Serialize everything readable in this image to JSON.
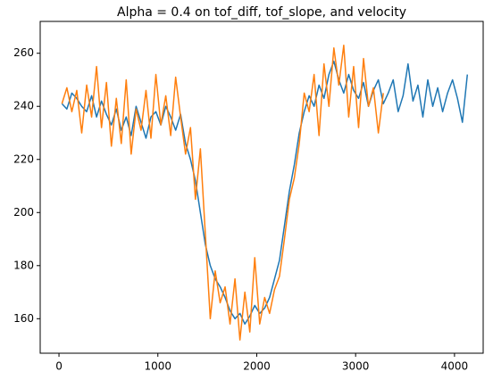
{
  "chart_data": {
    "type": "line",
    "title": "Alpha = 0.4 on tof_diff, tof_slope, and velocity",
    "series": [
      {
        "color": "#1f77b4",
        "x": [
          30,
          80,
          130,
          180,
          230,
          280,
          330,
          380,
          430,
          480,
          530,
          580,
          630,
          680,
          730,
          780,
          830,
          880,
          930,
          980,
          1030,
          1080,
          1130,
          1180,
          1230,
          1280,
          1330,
          1380,
          1430,
          1480,
          1530,
          1580,
          1630,
          1680,
          1730,
          1780,
          1830,
          1880,
          1930,
          1980,
          2030,
          2080,
          2130,
          2180,
          2230,
          2280,
          2330,
          2380,
          2430,
          2480,
          2530,
          2580,
          2630,
          2680,
          2730,
          2780,
          2830,
          2880,
          2930,
          2980,
          3030,
          3080,
          3130,
          3180,
          3230,
          3280,
          3330,
          3380,
          3430,
          3480,
          3530,
          3580,
          3630,
          3680,
          3730,
          3780,
          3830,
          3880,
          3930,
          3980,
          4030,
          4080,
          4130
        ],
        "values": [
          241,
          239,
          245,
          243,
          240,
          238,
          244,
          236,
          242,
          237,
          233,
          239,
          231,
          236,
          229,
          240,
          234,
          228,
          236,
          238,
          233,
          240,
          236,
          231,
          237,
          226,
          220,
          212,
          200,
          188,
          180,
          175,
          172,
          168,
          163,
          160,
          162,
          158,
          161,
          165,
          162,
          164,
          168,
          175,
          182,
          195,
          208,
          218,
          230,
          238,
          244,
          240,
          248,
          243,
          252,
          257,
          250,
          245,
          252,
          246,
          243,
          249,
          240,
          246,
          250,
          241,
          245,
          250,
          238,
          244,
          256,
          242,
          248,
          236,
          250,
          240,
          247,
          238,
          245,
          250,
          243,
          234,
          252
        ]
      },
      {
        "color": "#ff7f0e",
        "x": [
          30,
          80,
          130,
          180,
          230,
          280,
          330,
          380,
          430,
          480,
          530,
          580,
          630,
          680,
          730,
          780,
          830,
          880,
          930,
          980,
          1030,
          1080,
          1130,
          1180,
          1230,
          1280,
          1330,
          1380,
          1430,
          1480,
          1530,
          1580,
          1630,
          1680,
          1730,
          1780,
          1830,
          1880,
          1930,
          1980,
          2030,
          2080,
          2130,
          2180,
          2230,
          2280,
          2330,
          2380,
          2430,
          2480,
          2530,
          2580,
          2630,
          2680,
          2730,
          2780,
          2830,
          2880,
          2930,
          2980,
          3030,
          3080,
          3130,
          3180,
          3230,
          3280
        ],
        "values": [
          241,
          247,
          238,
          246,
          230,
          248,
          236,
          255,
          232,
          249,
          225,
          243,
          226,
          250,
          222,
          239,
          231,
          246,
          228,
          252,
          233,
          244,
          229,
          251,
          236,
          222,
          232,
          205,
          224,
          192,
          160,
          178,
          166,
          172,
          158,
          175,
          152,
          170,
          155,
          183,
          158,
          168,
          162,
          171,
          176,
          190,
          205,
          213,
          226,
          245,
          238,
          252,
          229,
          256,
          240,
          262,
          248,
          263,
          236,
          255,
          232,
          258,
          240,
          247,
          230,
          245
        ]
      }
    ],
    "xlim": [
      -190,
      4290
    ],
    "ylim": [
      147,
      272
    ],
    "xticks": [
      0,
      1000,
      2000,
      3000,
      4000
    ],
    "yticks": [
      160,
      180,
      200,
      220,
      240,
      260
    ]
  }
}
